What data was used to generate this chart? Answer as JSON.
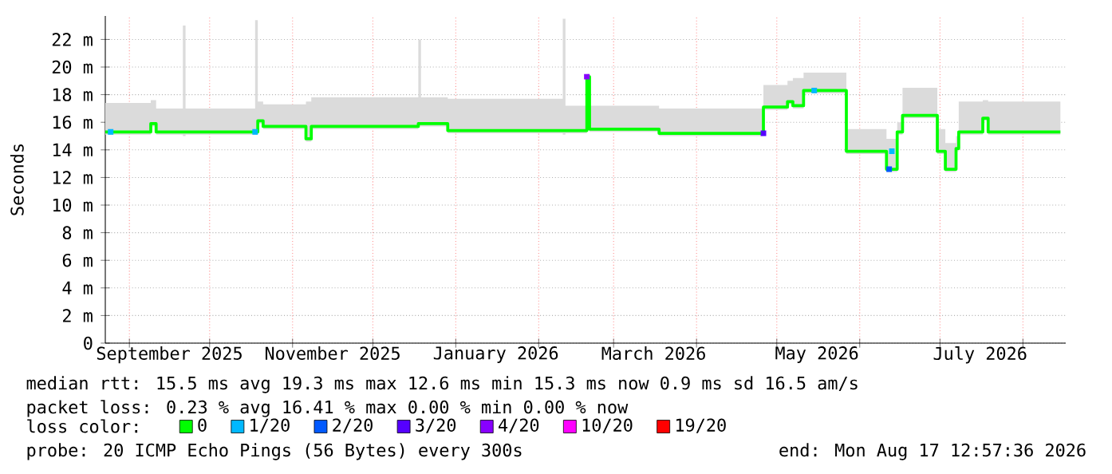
{
  "chart_data": {
    "type": "line",
    "ylabel": "Seconds",
    "xlim": [
      "2025-08-23",
      "2026-08-17"
    ],
    "xticks": [
      {
        "value": "2025-09-01",
        "label": null
      },
      {
        "value": "2025-10-01",
        "label": null
      },
      {
        "value": "2025-11-01",
        "label": null
      },
      {
        "value": "2025-12-01",
        "label": null
      },
      {
        "value": "2026-01-01",
        "label": null
      },
      {
        "value": "2026-02-01",
        "label": null
      },
      {
        "value": "2026-03-01",
        "label": null
      },
      {
        "value": "2026-04-01",
        "label": null
      },
      {
        "value": "2026-05-01",
        "label": null
      },
      {
        "value": "2026-06-01",
        "label": null
      },
      {
        "value": "2026-07-01",
        "label": null
      },
      {
        "value": "2026-08-01",
        "label": null
      },
      {
        "value": "2025-09-16",
        "label": "September 2025"
      },
      {
        "value": "2025-11-16",
        "label": "November 2025"
      },
      {
        "value": "2026-01-16",
        "label": "January 2026"
      },
      {
        "value": "2026-03-16",
        "label": "March 2026"
      },
      {
        "value": "2026-05-16",
        "label": "May 2026"
      },
      {
        "value": "2026-07-16",
        "label": "July 2026"
      }
    ],
    "ylim": [
      0,
      23.7
    ],
    "yticks": [
      0,
      {
        "value": 2,
        "label": "2 m"
      },
      {
        "value": 4,
        "label": "4 m"
      },
      {
        "value": 6,
        "label": "6 m"
      },
      {
        "value": 8,
        "label": "8 m"
      },
      {
        "value": 10,
        "label": "10 m"
      },
      {
        "value": 12,
        "label": "12 m"
      },
      {
        "value": 14,
        "label": "14 m"
      },
      {
        "value": 16,
        "label": "16 m"
      },
      {
        "value": 18,
        "label": "18 m"
      },
      {
        "value": 20,
        "label": "20 m"
      },
      {
        "value": 22,
        "label": "22 m"
      }
    ],
    "grid": true,
    "legend": "bottom",
    "legend_title": "loss color:",
    "series": [
      {
        "name": "0",
        "color": "#00ff00",
        "x": [
          "2025-08-23",
          "2025-09-09",
          "2025-09-09",
          "2025-09-11",
          "2025-09-11",
          "2025-09-21",
          "2025-09-21",
          "2025-09-22",
          "2025-09-22",
          "2025-10-18",
          "2025-10-18",
          "2025-10-19",
          "2025-10-19",
          "2025-10-21",
          "2025-10-21",
          "2025-11-06",
          "2025-11-06",
          "2025-11-08",
          "2025-11-08",
          "2025-12-18",
          "2025-12-18",
          "2025-12-19",
          "2025-12-19",
          "2025-12-29",
          "2025-12-29",
          "2026-02-10",
          "2026-02-10",
          "2026-02-11",
          "2026-02-11",
          "2026-02-19",
          "2026-02-19",
          "2026-02-20",
          "2026-02-20",
          "2026-03-18",
          "2026-03-18",
          "2026-04-26",
          "2026-04-26",
          "2026-05-05",
          "2026-05-05",
          "2026-05-07",
          "2026-05-07",
          "2026-05-11",
          "2026-05-11",
          "2026-05-27",
          "2026-05-27",
          "2026-06-11",
          "2026-06-11",
          "2026-06-15",
          "2026-06-15",
          "2026-06-17",
          "2026-06-17",
          "2026-06-30",
          "2026-06-30",
          "2026-07-03",
          "2026-07-03",
          "2026-07-07",
          "2026-07-07",
          "2026-07-08",
          "2026-07-08",
          "2026-07-17",
          "2026-07-17",
          "2026-07-19",
          "2026-07-19",
          "2026-08-15",
          "2026-08-15"
        ],
        "values": [
          15.3,
          15.3,
          15.9,
          15.9,
          15.3,
          15.3,
          15.3,
          15.3,
          15.3,
          15.3,
          15.3,
          15.3,
          16.1,
          16.1,
          15.7,
          15.7,
          14.8,
          14.8,
          15.7,
          15.7,
          15.9,
          15.9,
          15.9,
          15.9,
          15.4,
          15.4,
          15.4,
          15.4,
          15.4,
          15.4,
          19.3,
          19.3,
          15.5,
          15.5,
          15.2,
          15.2,
          17.1,
          17.1,
          17.5,
          17.5,
          17.2,
          17.2,
          18.3,
          18.3,
          13.9,
          13.9,
          12.6,
          12.6,
          15.3,
          15.3,
          16.5,
          16.5,
          13.9,
          13.9,
          12.6,
          12.6,
          14.1,
          14.1,
          15.3,
          15.3,
          16.3,
          16.3,
          15.3,
          15.3,
          15.3
        ],
        "lower": [
          15.1,
          15.1,
          15.7,
          15.7,
          15.1,
          15.1,
          15.0,
          15.0,
          15.1,
          15.1,
          15.1,
          15.1,
          15.9,
          15.9,
          15.5,
          15.5,
          14.6,
          14.6,
          15.5,
          15.5,
          15.7,
          15.7,
          15.7,
          15.7,
          15.2,
          15.2,
          15.1,
          15.1,
          15.2,
          15.2,
          19.1,
          19.1,
          15.3,
          15.3,
          15.0,
          15.0,
          16.9,
          16.9,
          17.3,
          17.3,
          17.0,
          17.0,
          18.1,
          18.1,
          13.7,
          13.7,
          12.4,
          12.4,
          15.1,
          15.1,
          16.3,
          16.3,
          13.7,
          13.7,
          12.4,
          12.4,
          13.9,
          13.9,
          15.1,
          15.1,
          16.1,
          16.1,
          15.1,
          15.1,
          15.1
        ],
        "upper": [
          17.4,
          17.4,
          17.6,
          17.6,
          17.0,
          17.0,
          23.0,
          23.0,
          17.0,
          17.0,
          23.4,
          23.4,
          17.5,
          17.5,
          17.3,
          17.3,
          17.5,
          17.5,
          17.8,
          17.8,
          22.0,
          22.0,
          17.8,
          17.8,
          17.7,
          17.7,
          23.5,
          23.5,
          17.2,
          17.2,
          19.5,
          19.5,
          17.2,
          17.2,
          17.0,
          17.0,
          18.7,
          18.7,
          19.0,
          19.0,
          19.2,
          19.2,
          19.6,
          19.6,
          15.5,
          15.5,
          14.8,
          14.8,
          16.0,
          16.0,
          18.5,
          18.5,
          15.5,
          15.5,
          14.5,
          14.5,
          15.0,
          15.0,
          17.5,
          17.5,
          17.6,
          17.6,
          17.5,
          17.5,
          17.5
        ]
      },
      {
        "name": "1/20",
        "type": "scatter",
        "marker": "square",
        "color": "#00b8ff",
        "x": [
          "2025-08-25",
          "2025-10-18",
          "2026-05-15",
          "2026-06-13"
        ],
        "values": [
          15.3,
          15.3,
          18.3,
          13.9
        ]
      },
      {
        "name": "2/20",
        "type": "scatter",
        "marker": "square",
        "color": "#0059ff",
        "x": [
          "2026-06-12"
        ],
        "values": [
          12.6
        ]
      },
      {
        "name": "3/20",
        "type": "scatter",
        "marker": "square",
        "color": "#5500ff",
        "x": [
          "2026-04-26"
        ],
        "values": [
          15.2
        ]
      },
      {
        "name": "4/20",
        "type": "scatter",
        "marker": "square",
        "color": "#8800ff",
        "x": [
          "2026-02-19"
        ],
        "values": [
          19.3
        ]
      },
      {
        "name": "10/20",
        "type": "scatter",
        "marker": "square",
        "color": "#ff00ff"
      },
      {
        "name": "19/20",
        "type": "scatter",
        "marker": "square",
        "color": "#ff0000"
      }
    ],
    "annotations": [
      "median rtt:  15.5 ms avg  19.3 ms max  12.6 ms min  15.3 ms now  0.9 ms sd  16.5   am/s",
      "packet loss: 0.23 % avg  16.41 % max  0.00 % min  0.00 % now",
      "probe:       20 ICMP Echo Pings (56 Bytes) every 300s",
      "end: Mon Aug 17 12:57:36 2026"
    ]
  }
}
